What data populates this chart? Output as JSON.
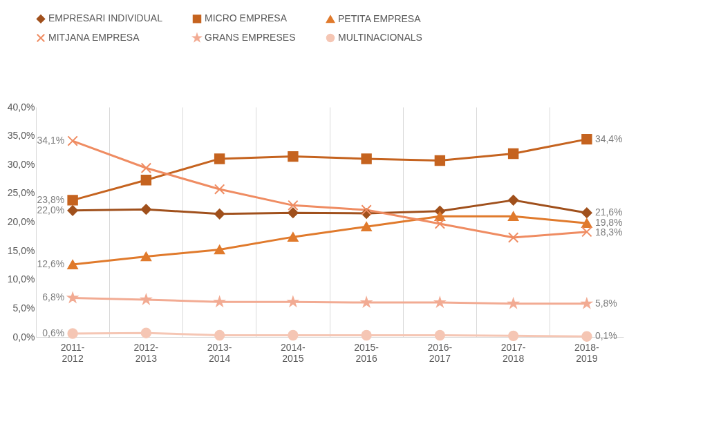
{
  "chart_data": {
    "type": "line",
    "categories": [
      "2011-2012",
      "2012-2013",
      "2013-2014",
      "2014-2015",
      "2015-2016",
      "2016-2017",
      "2017-2018",
      "2018-2019"
    ],
    "ylim": [
      0,
      40
    ],
    "yticks": [
      {
        "value": 0,
        "label": "0,0%"
      },
      {
        "value": 5,
        "label": "5,0%"
      },
      {
        "value": 10,
        "label": "10,0%"
      },
      {
        "value": 15,
        "label": "15,0%"
      },
      {
        "value": 20,
        "label": "20,0%"
      },
      {
        "value": 25,
        "label": "25,0%"
      },
      {
        "value": 30,
        "label": "30,0%"
      },
      {
        "value": 35,
        "label": "35,0%"
      },
      {
        "value": 40,
        "label": "40,0%"
      }
    ],
    "grid": "x",
    "legend": "top",
    "line_style": "solid",
    "series": [
      {
        "name": "EMPRESARI INDIVIDUAL",
        "color": "#a0501c",
        "marker": "diamond",
        "values": [
          22.0,
          22.2,
          21.4,
          21.6,
          21.5,
          21.9,
          23.8,
          21.6
        ],
        "value_labels": [
          "22,0%",
          null,
          null,
          null,
          null,
          null,
          null,
          "21,6%"
        ]
      },
      {
        "name": "MICRO EMPRESA",
        "color": "#c5631f",
        "marker": "square",
        "values": [
          23.8,
          27.3,
          31.0,
          31.4,
          31.0,
          30.7,
          31.9,
          34.4
        ],
        "value_labels": [
          "23,8%",
          null,
          null,
          null,
          null,
          null,
          null,
          "34,4%"
        ]
      },
      {
        "name": "PETITA EMPRESA",
        "color": "#e07a2c",
        "marker": "triangle",
        "values": [
          12.6,
          14.0,
          15.2,
          17.4,
          19.2,
          21.0,
          21.0,
          19.8
        ],
        "value_labels": [
          "12,6%",
          null,
          null,
          null,
          null,
          null,
          null,
          "19,8%"
        ]
      },
      {
        "name": "MITJANA EMPRESA",
        "color": "#ef8c62",
        "marker": "cross",
        "values": [
          34.1,
          29.4,
          25.7,
          22.9,
          22.1,
          19.7,
          17.3,
          18.3
        ],
        "value_labels": [
          "34,1%",
          null,
          null,
          null,
          null,
          null,
          null,
          "18,3%"
        ]
      },
      {
        "name": "GRANS EMPRESES",
        "color": "#f2ab93",
        "marker": "star",
        "values": [
          6.8,
          6.5,
          6.1,
          6.1,
          6.0,
          6.0,
          5.8,
          5.8
        ],
        "value_labels": [
          "6,8%",
          null,
          null,
          null,
          null,
          null,
          null,
          "5,8%"
        ]
      },
      {
        "name": "MULTINACIONALS",
        "color": "#f5c6b4",
        "marker": "circle",
        "values": [
          0.6,
          0.7,
          0.3,
          0.3,
          0.3,
          0.3,
          0.2,
          0.1
        ],
        "value_labels": [
          "0,6%",
          null,
          null,
          null,
          null,
          null,
          null,
          "0,1%"
        ]
      }
    ]
  }
}
